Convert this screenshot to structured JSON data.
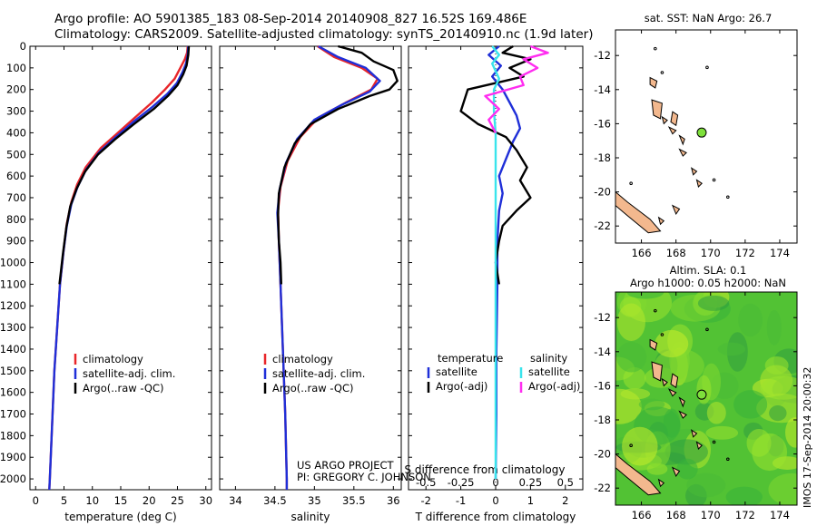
{
  "header": {
    "line1": "Argo profile: AO 5901385_183 08-Sep-2014 20140908_827 16.52S 169.486E",
    "line2": "Climatology: CARS2009. Satellite-adjusted climatology: synTS_20140910.nc (1.9d later)"
  },
  "colors": {
    "climatology": "#e8262a",
    "satellite": "#1f2fd8",
    "argo": "#000000",
    "satellite_salinity": "#39e4ec",
    "argo_salinity": "#ff2df0",
    "land": "#f3b88e",
    "marker": "#7ee03b"
  },
  "credit": {
    "project": "US ARGO PROJECT",
    "pi": "PI: GREGORY C. JOHNSON"
  },
  "timestamp": "IMOS 17-Sep-2014 20:00:32",
  "chart_data": [
    {
      "type": "line",
      "panel": "temperature",
      "xlabel": "temperature (deg C)",
      "xlim": [
        -1,
        31
      ],
      "xticks": [
        0,
        5,
        10,
        15,
        20,
        25,
        30
      ],
      "ylim": [
        2050,
        0
      ],
      "yticks": [
        0,
        100,
        200,
        300,
        400,
        500,
        600,
        700,
        800,
        900,
        1000,
        1100,
        1200,
        1300,
        1400,
        1500,
        1600,
        1700,
        1800,
        1900,
        2000
      ],
      "grid": false,
      "legend": {
        "position": "lower-middle",
        "entries": [
          "climatology",
          "satellite-adj. clim.",
          "Argo(..raw -QC)"
        ]
      },
      "series": [
        {
          "name": "climatology",
          "color": "#e8262a",
          "points": [
            [
              26.8,
              0
            ],
            [
              26.7,
              30
            ],
            [
              26.3,
              60
            ],
            [
              25.5,
              100
            ],
            [
              24.5,
              150
            ],
            [
              22.8,
              200
            ],
            [
              20.5,
              260
            ],
            [
              17.5,
              330
            ],
            [
              14.5,
              400
            ],
            [
              11.5,
              470
            ],
            [
              8.8,
              560
            ],
            [
              7.3,
              640
            ],
            [
              6.3,
              720
            ],
            [
              5.5,
              820
            ],
            [
              4.9,
              950
            ],
            [
              4.3,
              1100
            ],
            [
              3.8,
              1300
            ],
            [
              3.3,
              1500
            ],
            [
              2.9,
              1750
            ],
            [
              2.5,
              2000
            ],
            [
              2.4,
              2050
            ]
          ]
        },
        {
          "name": "satellite-adj. clim.",
          "color": "#1f2fd8",
          "points": [
            [
              26.9,
              0
            ],
            [
              26.8,
              40
            ],
            [
              26.5,
              80
            ],
            [
              25.9,
              120
            ],
            [
              24.9,
              170
            ],
            [
              23.2,
              220
            ],
            [
              20.6,
              280
            ],
            [
              17.2,
              350
            ],
            [
              14.1,
              420
            ],
            [
              11.2,
              490
            ],
            [
              8.9,
              570
            ],
            [
              7.4,
              650
            ],
            [
              6.3,
              730
            ],
            [
              5.5,
              830
            ],
            [
              4.9,
              950
            ],
            [
              4.3,
              1100
            ],
            [
              3.8,
              1300
            ],
            [
              3.3,
              1500
            ],
            [
              2.9,
              1750
            ],
            [
              2.5,
              2000
            ],
            [
              2.4,
              2050
            ]
          ]
        },
        {
          "name": "Argo(..raw -QC)",
          "color": "#000000",
          "points": [
            [
              27.0,
              0
            ],
            [
              26.9,
              40
            ],
            [
              26.6,
              90
            ],
            [
              26.0,
              130
            ],
            [
              25.0,
              180
            ],
            [
              23.3,
              230
            ],
            [
              20.8,
              290
            ],
            [
              17.3,
              360
            ],
            [
              14.0,
              430
            ],
            [
              11.0,
              500
            ],
            [
              8.7,
              580
            ],
            [
              7.2,
              660
            ],
            [
              6.1,
              740
            ],
            [
              5.4,
              840
            ],
            [
              4.8,
              960
            ],
            [
              4.2,
              1100
            ]
          ]
        }
      ]
    },
    {
      "type": "line",
      "panel": "salinity",
      "xlabel": "salinity",
      "xlim": [
        33.8,
        36.1
      ],
      "xticks": [
        34,
        34.5,
        35,
        35.5,
        36
      ],
      "ylim": [
        2050,
        0
      ],
      "grid": false,
      "legend": {
        "position": "lower-middle",
        "entries": [
          "climatology",
          "satellite-adj. clim.",
          "Argo(..raw -QC)"
        ]
      },
      "series": [
        {
          "name": "climatology",
          "color": "#e8262a",
          "points": [
            [
              35.04,
              0
            ],
            [
              35.25,
              50
            ],
            [
              35.6,
              100
            ],
            [
              35.8,
              150
            ],
            [
              35.72,
              200
            ],
            [
              35.4,
              260
            ],
            [
              35.05,
              330
            ],
            [
              34.82,
              420
            ],
            [
              34.66,
              530
            ],
            [
              34.57,
              650
            ],
            [
              34.54,
              760
            ],
            [
              34.55,
              900
            ],
            [
              34.57,
              1100
            ],
            [
              34.6,
              1400
            ],
            [
              34.63,
              1700
            ],
            [
              34.65,
              2000
            ],
            [
              34.65,
              2050
            ]
          ]
        },
        {
          "name": "satellite-adj. clim.",
          "color": "#1f2fd8",
          "points": [
            [
              35.05,
              0
            ],
            [
              35.3,
              50
            ],
            [
              35.65,
              100
            ],
            [
              35.83,
              160
            ],
            [
              35.7,
              210
            ],
            [
              35.35,
              270
            ],
            [
              35.0,
              340
            ],
            [
              34.78,
              430
            ],
            [
              34.64,
              540
            ],
            [
              34.56,
              660
            ],
            [
              34.53,
              770
            ],
            [
              34.55,
              900
            ],
            [
              34.57,
              1100
            ],
            [
              34.6,
              1400
            ],
            [
              34.63,
              1700
            ],
            [
              34.65,
              2000
            ],
            [
              34.65,
              2050
            ]
          ]
        },
        {
          "name": "Argo(..raw -QC)",
          "color": "#000000",
          "points": [
            [
              35.3,
              0
            ],
            [
              35.6,
              30
            ],
            [
              35.75,
              70
            ],
            [
              36.0,
              110
            ],
            [
              36.05,
              160
            ],
            [
              35.95,
              200
            ],
            [
              35.7,
              230
            ],
            [
              35.3,
              290
            ],
            [
              34.95,
              360
            ],
            [
              34.75,
              450
            ],
            [
              34.62,
              560
            ],
            [
              34.55,
              680
            ],
            [
              34.54,
              780
            ],
            [
              34.55,
              900
            ],
            [
              34.57,
              1000
            ],
            [
              34.58,
              1100
            ]
          ]
        }
      ]
    },
    {
      "type": "line",
      "panel": "difference",
      "xlabel": "T difference from climatology",
      "xlabel_top": "S difference from climatology",
      "xlim": [
        -2.5,
        2.5
      ],
      "xticks": [
        -2,
        -1,
        0,
        1,
        2
      ],
      "xticks_top": [
        -0.5,
        -0.25,
        0,
        0.25,
        0.5
      ],
      "ylim": [
        2050,
        0
      ],
      "grid": false,
      "legend": {
        "position": "lower-middle",
        "headers": [
          "temperature",
          "salinity"
        ],
        "entries": [
          "satellite",
          "Argo(-adj)",
          "satellite",
          "Argo(-adj)"
        ]
      },
      "series": [
        {
          "name": "satellite",
          "group": "temperature",
          "color": "#1f2fd8",
          "points": [
            [
              0.1,
              0
            ],
            [
              -0.2,
              40
            ],
            [
              0.15,
              90
            ],
            [
              -0.1,
              140
            ],
            [
              0.2,
              200
            ],
            [
              0.4,
              260
            ],
            [
              0.6,
              320
            ],
            [
              0.7,
              380
            ],
            [
              0.5,
              440
            ],
            [
              0.3,
              520
            ],
            [
              0.1,
              600
            ],
            [
              0.2,
              680
            ],
            [
              0.1,
              760
            ],
            [
              0.05,
              900
            ],
            [
              0.05,
              1100
            ],
            [
              0.02,
              1400
            ],
            [
              0.02,
              1700
            ],
            [
              0.0,
              2000
            ]
          ]
        },
        {
          "name": "Argo(-adj)",
          "group": "temperature",
          "color": "#000000",
          "points": [
            [
              0.5,
              0
            ],
            [
              0.2,
              30
            ],
            [
              1.0,
              60
            ],
            [
              0.4,
              100
            ],
            [
              0.8,
              140
            ],
            [
              -0.8,
              200
            ],
            [
              -1.0,
              300
            ],
            [
              -0.5,
              360
            ],
            [
              0.3,
              420
            ],
            [
              0.6,
              480
            ],
            [
              0.9,
              560
            ],
            [
              0.7,
              620
            ],
            [
              1.0,
              700
            ],
            [
              0.6,
              760
            ],
            [
              0.2,
              830
            ],
            [
              0.1,
              900
            ],
            [
              0.0,
              1000
            ],
            [
              0.1,
              1100
            ]
          ]
        },
        {
          "name": "satellite",
          "group": "salinity",
          "color": "#39e4ec",
          "points": [
            [
              -0.1,
              0
            ],
            [
              0.1,
              40
            ],
            [
              -0.1,
              80
            ],
            [
              0.1,
              150
            ],
            [
              -0.05,
              200
            ],
            [
              -0.05,
              300
            ],
            [
              0.0,
              400
            ],
            [
              0.0,
              600
            ],
            [
              0.0,
              900
            ],
            [
              0.0,
              1200
            ],
            [
              0.0,
              1600
            ],
            [
              0.0,
              2000
            ]
          ]
        },
        {
          "name": "Argo(-adj)",
          "group": "salinity",
          "color": "#ff2df0",
          "points": [
            [
              1.0,
              0
            ],
            [
              1.5,
              30
            ],
            [
              0.8,
              60
            ],
            [
              1.2,
              100
            ],
            [
              0.7,
              140
            ],
            [
              0.8,
              180
            ],
            [
              -0.3,
              230
            ],
            [
              0.1,
              290
            ],
            [
              -0.2,
              340
            ],
            [
              0.0,
              400
            ]
          ]
        }
      ]
    },
    {
      "type": "map",
      "panel": "sst-map",
      "title": "sat. SST: NaN Argo: 26.7",
      "xlim": [
        164.5,
        175
      ],
      "ylim": [
        -23,
        -10.5
      ],
      "xticks": [
        166,
        168,
        170,
        172,
        174
      ],
      "yticks": [
        -12,
        -14,
        -16,
        -18,
        -20,
        -22
      ],
      "marker": {
        "lon": 169.486,
        "lat": -16.52
      }
    },
    {
      "type": "heatmap",
      "panel": "sla-map",
      "title": "Altim. SLA: 0.1",
      "subtitle": "Argo h1000: 0.05 h2000: NaN",
      "xlim": [
        164.5,
        175
      ],
      "ylim": [
        -23,
        -10.5
      ],
      "xticks": [
        166,
        168,
        170,
        172,
        174
      ],
      "yticks": [
        -12,
        -14,
        -16,
        -18,
        -20,
        -22
      ],
      "marker": {
        "lon": 169.486,
        "lat": -16.52
      }
    }
  ]
}
